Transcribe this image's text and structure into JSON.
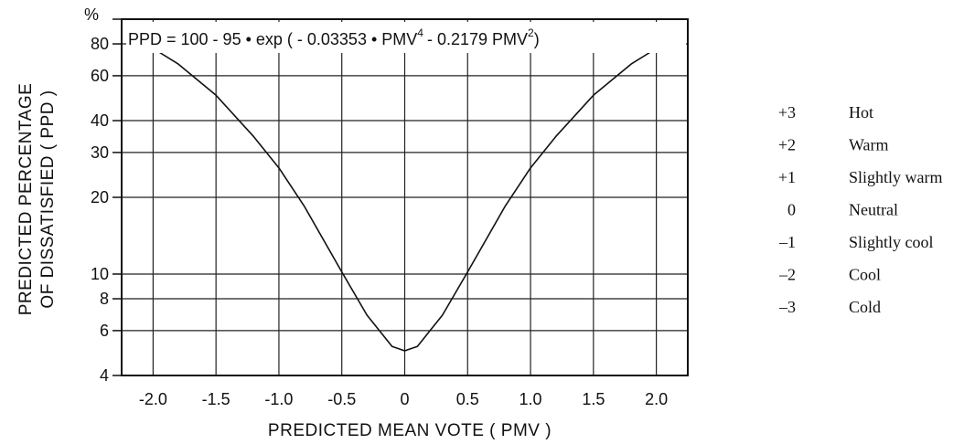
{
  "chart_data": {
    "type": "line",
    "formula": {
      "prefix": "PPD = 100 - 95 • exp ( - 0.03353 • PMV",
      "exp1": "4",
      "middle": "- 0.2179 PMV",
      "exp2": "2",
      "suffix": ")"
    },
    "xlabel": "PREDICTED  MEAN  VOTE  ( PMV )",
    "ylabel_line1": "PREDICTED  PERCENTAGE",
    "ylabel_line2": "OF  DISSATISFIED  ( PPD )",
    "y_unit": "%",
    "xlim": [
      -2.25,
      2.25
    ],
    "ylim": [
      4,
      100
    ],
    "y_scale": "log",
    "grid": true,
    "x_ticks": [
      -2.0,
      -1.5,
      -1.0,
      -0.5,
      0,
      0.5,
      1.0,
      1.5,
      2.0
    ],
    "x_tick_labels": [
      "-2.0",
      "-1.5",
      "-1.0",
      "-0.5",
      "0",
      "0.5",
      "1.0",
      "1.5",
      "2.0"
    ],
    "y_ticks": [
      4,
      6,
      8,
      10,
      20,
      30,
      40,
      60,
      80
    ],
    "y_tick_labels": [
      "4",
      "6",
      "8",
      "10",
      "20",
      "30",
      "40",
      "60",
      "80"
    ],
    "series": [
      {
        "x": [
          -2.1,
          -2.0,
          -1.8,
          -1.5,
          -1.2,
          -1.0,
          -0.8,
          -0.5,
          -0.3,
          -0.1,
          0,
          0.1,
          0.3,
          0.5,
          0.8,
          1.0,
          1.2,
          1.5,
          1.8,
          2.0
        ],
        "y": [
          80.9,
          76.8,
          66.7,
          50.3,
          34.6,
          26.1,
          18.5,
          10.2,
          6.9,
          5.2,
          5.0,
          5.2,
          6.9,
          10.2,
          18.5,
          26.1,
          34.6,
          50.3,
          66.7,
          76.8
        ]
      }
    ]
  },
  "scale": [
    {
      "value": "+3",
      "label": "Hot"
    },
    {
      "value": "+2",
      "label": "Warm"
    },
    {
      "value": "+1",
      "label": "Slightly warm"
    },
    {
      "value": "0",
      "label": "Neutral"
    },
    {
      "value": "–1",
      "label": "Slightly cool"
    },
    {
      "value": "–2",
      "label": "Cool"
    },
    {
      "value": "–3",
      "label": "Cold"
    }
  ]
}
